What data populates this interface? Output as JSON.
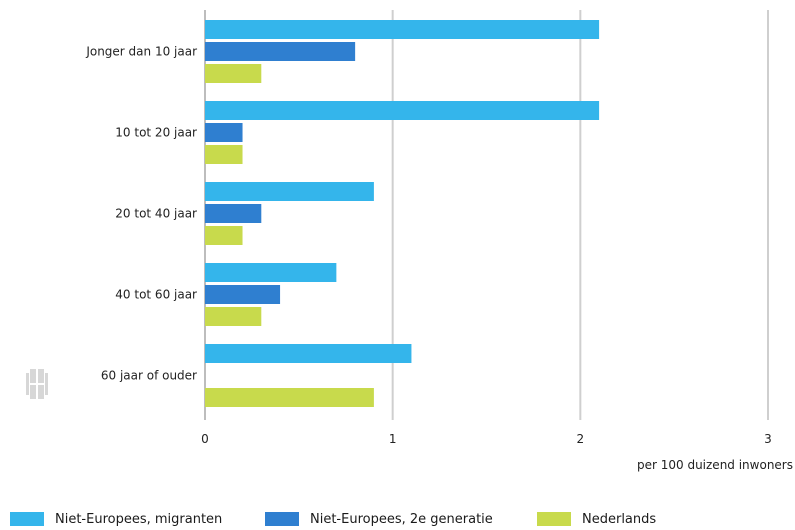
{
  "chart_data": {
    "type": "bar",
    "orientation": "horizontal",
    "categories": [
      "Jonger dan 10 jaar",
      "10 tot 20 jaar",
      "20 tot 40 jaar",
      "40 tot 60 jaar",
      "60 jaar of ouder"
    ],
    "series": [
      {
        "name": "Niet-Europees, migranten",
        "values": [
          2.1,
          2.1,
          0.9,
          0.7,
          1.1
        ]
      },
      {
        "name": "Niet-Europees, 2e generatie",
        "values": [
          0.8,
          0.2,
          0.3,
          0.4,
          0.0
        ]
      },
      {
        "name": "Nederlands",
        "values": [
          0.3,
          0.2,
          0.2,
          0.3,
          0.9
        ]
      }
    ],
    "xlim": [
      0,
      3
    ],
    "x_ticks": [
      "0",
      "1",
      "2",
      "3"
    ],
    "xlabel": "per 100 duizend inwoners",
    "grid": true,
    "legend_position": "bottom"
  },
  "colors": {
    "Niet-Europees, migranten": "#34b5eb",
    "Niet-Europees, 2e generatie": "#2f7fd0",
    "Nederlands": "#c8da4c",
    "grid": "#cfcfcf",
    "text": "#222222"
  },
  "logo_text": "cbs"
}
